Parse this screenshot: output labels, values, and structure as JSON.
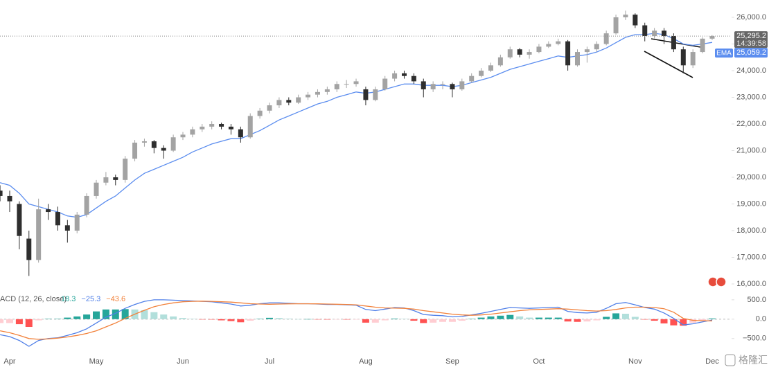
{
  "chart_data": [
    {
      "type": "candlestick",
      "categories": [
        null,
        "Apr",
        null,
        null,
        null,
        null,
        null,
        null,
        null,
        null,
        "May",
        null,
        null,
        null,
        null,
        null,
        null,
        null,
        null,
        "Jun",
        null,
        null,
        null,
        null,
        null,
        null,
        null,
        null,
        "Jul",
        null,
        null,
        null,
        null,
        null,
        null,
        null,
        null,
        null,
        "Aug",
        null,
        null,
        null,
        null,
        null,
        null,
        null,
        null,
        "Sep",
        null,
        null,
        null,
        null,
        null,
        null,
        null,
        null,
        "Oct",
        null,
        null,
        null,
        null,
        null,
        null,
        null,
        null,
        null,
        "Nov",
        null,
        null,
        null,
        null,
        null,
        null,
        null,
        "Dec"
      ],
      "candles": [
        [
          19500,
          19700,
          19100,
          19300
        ],
        [
          19300,
          19500,
          18700,
          19100
        ],
        [
          19000,
          19100,
          17300,
          17800
        ],
        [
          17700,
          18000,
          16300,
          16900
        ],
        [
          16900,
          19200,
          16800,
          18800
        ],
        [
          18800,
          19000,
          18400,
          18700
        ],
        [
          18700,
          18900,
          18000,
          18200
        ],
        [
          18200,
          18400,
          17550,
          18000
        ],
        [
          18000,
          18700,
          17900,
          18600
        ],
        [
          18600,
          19400,
          18500,
          19300
        ],
        [
          19300,
          19900,
          19200,
          19800
        ],
        [
          19800,
          20200,
          19700,
          20000
        ],
        [
          20000,
          20100,
          19700,
          19900
        ],
        [
          19900,
          20800,
          19800,
          20700
        ],
        [
          20700,
          21400,
          20600,
          21300
        ],
        [
          21300,
          21450,
          21150,
          21350
        ],
        [
          21350,
          21400,
          20900,
          21100
        ],
        [
          21100,
          21200,
          20700,
          21000
        ],
        [
          21000,
          21600,
          20950,
          21500
        ],
        [
          21500,
          21700,
          21400,
          21600
        ],
        [
          21600,
          21900,
          21500,
          21800
        ],
        [
          21800,
          22000,
          21700,
          21900
        ],
        [
          21900,
          22100,
          21800,
          22000
        ],
        [
          22000,
          22050,
          21800,
          21900
        ],
        [
          21900,
          22000,
          21600,
          21800
        ],
        [
          21800,
          21900,
          21300,
          21500
        ],
        [
          21500,
          22400,
          21450,
          22300
        ],
        [
          22300,
          22600,
          22200,
          22500
        ],
        [
          22500,
          22800,
          22400,
          22700
        ],
        [
          22700,
          23000,
          22600,
          22900
        ],
        [
          22900,
          23000,
          22700,
          22800
        ],
        [
          22800,
          23100,
          22750,
          23000
        ],
        [
          23000,
          23200,
          22900,
          23100
        ],
        [
          23100,
          23300,
          23000,
          23200
        ],
        [
          23200,
          23400,
          23100,
          23300
        ],
        [
          23300,
          23600,
          23200,
          23500
        ],
        [
          23500,
          23650,
          23350,
          23500
        ],
        [
          23500,
          23700,
          23400,
          23600
        ],
        [
          23300,
          23400,
          22700,
          22900
        ],
        [
          22900,
          23400,
          22850,
          23300
        ],
        [
          23300,
          23800,
          23250,
          23700
        ],
        [
          23700,
          24000,
          23600,
          23900
        ],
        [
          23900,
          24000,
          23700,
          23800
        ],
        [
          23800,
          23900,
          23500,
          23600
        ],
        [
          23600,
          23700,
          23000,
          23300
        ],
        [
          23300,
          23600,
          23200,
          23500
        ],
        [
          23500,
          23600,
          23300,
          23500
        ],
        [
          23500,
          23550,
          23000,
          23300
        ],
        [
          23300,
          23700,
          23250,
          23600
        ],
        [
          23600,
          23900,
          23550,
          23800
        ],
        [
          23800,
          24100,
          23750,
          24000
        ],
        [
          24000,
          24300,
          23950,
          24200
        ],
        [
          24200,
          24600,
          24150,
          24500
        ],
        [
          24500,
          24900,
          24450,
          24800
        ],
        [
          24800,
          24850,
          24500,
          24600
        ],
        [
          24600,
          24800,
          24450,
          24700
        ],
        [
          24700,
          25000,
          24650,
          24900
        ],
        [
          24900,
          25100,
          24850,
          25000
        ],
        [
          25000,
          25200,
          24950,
          25100
        ],
        [
          25100,
          25150,
          24000,
          24200
        ],
        [
          24200,
          24800,
          24150,
          24700
        ],
        [
          24700,
          24900,
          24300,
          24800
        ],
        [
          24800,
          25100,
          24700,
          25000
        ],
        [
          25000,
          25500,
          24950,
          25400
        ],
        [
          25400,
          26100,
          25350,
          26000
        ],
        [
          26000,
          26250,
          25900,
          26100
        ],
        [
          26100,
          26150,
          25600,
          25700
        ],
        [
          25700,
          25800,
          25100,
          25300
        ],
        [
          25300,
          25600,
          25200,
          25500
        ],
        [
          25500,
          25600,
          25000,
          25300
        ],
        [
          25300,
          25400,
          24700,
          24800
        ],
        [
          24800,
          24900,
          23900,
          24200
        ],
        [
          24200,
          24800,
          24100,
          24700
        ],
        [
          24700,
          25250,
          24650,
          25200
        ],
        [
          25200,
          25330,
          25150,
          25295.2
        ]
      ],
      "up_color": "#a3a3a3",
      "down_color": "#2e2e2e",
      "last_value_label": "25,295.2",
      "countdown": "14:39:58",
      "series": [
        {
          "name": "EMA",
          "color": "#5b8def",
          "last_value_label": "25,059.2",
          "values": [
            19800,
            19700,
            19400,
            19000,
            18900,
            18800,
            18700,
            18550,
            18500,
            18600,
            18850,
            19100,
            19300,
            19600,
            19900,
            20150,
            20300,
            20450,
            20600,
            20750,
            20950,
            21100,
            21250,
            21350,
            21450,
            21450,
            21600,
            21750,
            21950,
            22150,
            22300,
            22450,
            22600,
            22750,
            22850,
            23000,
            23100,
            23200,
            23150,
            23200,
            23300,
            23400,
            23500,
            23500,
            23450,
            23450,
            23450,
            23400,
            23450,
            23550,
            23650,
            23750,
            23900,
            24050,
            24150,
            24250,
            24350,
            24450,
            24550,
            24500,
            24550,
            24600,
            24700,
            24850,
            25050,
            25250,
            25350,
            25350,
            25400,
            25350,
            25200,
            25000,
            24950,
            25000,
            25059.2
          ]
        }
      ],
      "ylim": [
        15740,
        26650
      ],
      "yticks": [
        {
          "value": 16000,
          "label": "16,000.0"
        },
        {
          "value": 17000,
          "label": "17,000.0"
        },
        {
          "value": 18000,
          "label": "18,000.0"
        },
        {
          "value": 19000,
          "label": "19,000.0"
        },
        {
          "value": 20000,
          "label": "20,000.0"
        },
        {
          "value": 21000,
          "label": "21,000.0"
        },
        {
          "value": 22000,
          "label": "22,000.0"
        },
        {
          "value": 23000,
          "label": "23,000.0"
        },
        {
          "value": 24000,
          "label": "24,000.0"
        },
        {
          "value": 25000,
          "label": "25,000.0"
        },
        {
          "value": 26000,
          "label": "26,000.0"
        }
      ],
      "grid": false
    },
    {
      "type": "macd",
      "title": "ACD (12, 26, close)",
      "histogram_colors": [
        "#26a69a",
        "#b2dfdb",
        "#ff5252",
        "#ffcdd2"
      ],
      "series": [
        {
          "color": "#26a69a",
          "value_label": "18.3",
          "values": [
            -100,
            -100,
            -130,
            -200,
            -30,
            10,
            10,
            40,
            70,
            120,
            200,
            250,
            250,
            260,
            250,
            230,
            180,
            120,
            70,
            30,
            10,
            -5,
            -10,
            -30,
            -50,
            -80,
            -40,
            10,
            35,
            30,
            15,
            2,
            2,
            -5,
            -10,
            -5,
            -10,
            -10,
            -90,
            -90,
            -30,
            15,
            10,
            -40,
            -100,
            -90,
            -70,
            -70,
            -40,
            10,
            40,
            70,
            90,
            110,
            70,
            40,
            40,
            40,
            40,
            -60,
            -70,
            -60,
            -30,
            60,
            150,
            140,
            60,
            -10,
            -40,
            -110,
            -160,
            -170,
            -90,
            -30,
            18.3
          ]
        },
        {
          "color": "#4f7fe8",
          "value_label": "−25.3",
          "values": [
            -400,
            -450,
            -550,
            -700,
            -550,
            -500,
            -480,
            -420,
            -350,
            -250,
            -100,
            50,
            150,
            280,
            380,
            460,
            500,
            500,
            490,
            480,
            470,
            460,
            450,
            420,
            390,
            340,
            360,
            400,
            420,
            420,
            410,
            400,
            400,
            390,
            380,
            380,
            370,
            360,
            250,
            220,
            260,
            300,
            290,
            220,
            120,
            100,
            90,
            60,
            70,
            110,
            150,
            200,
            250,
            300,
            290,
            280,
            290,
            300,
            310,
            200,
            170,
            160,
            180,
            280,
            400,
            430,
            370,
            300,
            260,
            160,
            20,
            -150,
            -120,
            -70,
            -25.3
          ]
        },
        {
          "color": "#f2813a",
          "value_label": "−43.6",
          "values": [
            -300,
            -350,
            -420,
            -500,
            -520,
            -510,
            -490,
            -460,
            -420,
            -370,
            -300,
            -200,
            -100,
            20,
            130,
            230,
            320,
            380,
            420,
            450,
            460,
            465,
            460,
            450,
            440,
            420,
            400,
            390,
            385,
            390,
            395,
            398,
            398,
            395,
            390,
            385,
            380,
            370,
            340,
            310,
            290,
            285,
            280,
            260,
            220,
            190,
            160,
            130,
            110,
            100,
            110,
            130,
            160,
            190,
            220,
            240,
            250,
            260,
            270,
            260,
            240,
            220,
            210,
            220,
            250,
            290,
            310,
            310,
            300,
            270,
            180,
            20,
            -30,
            -40,
            -43.6
          ]
        }
      ],
      "ylim": [
        -790,
        730
      ],
      "yticks": [
        {
          "value": 500,
          "label": "500.0"
        },
        {
          "value": 0,
          "label": "0.0"
        },
        {
          "value": -500,
          "label": "−500.0"
        }
      ]
    }
  ],
  "watermark": "格隆汇"
}
